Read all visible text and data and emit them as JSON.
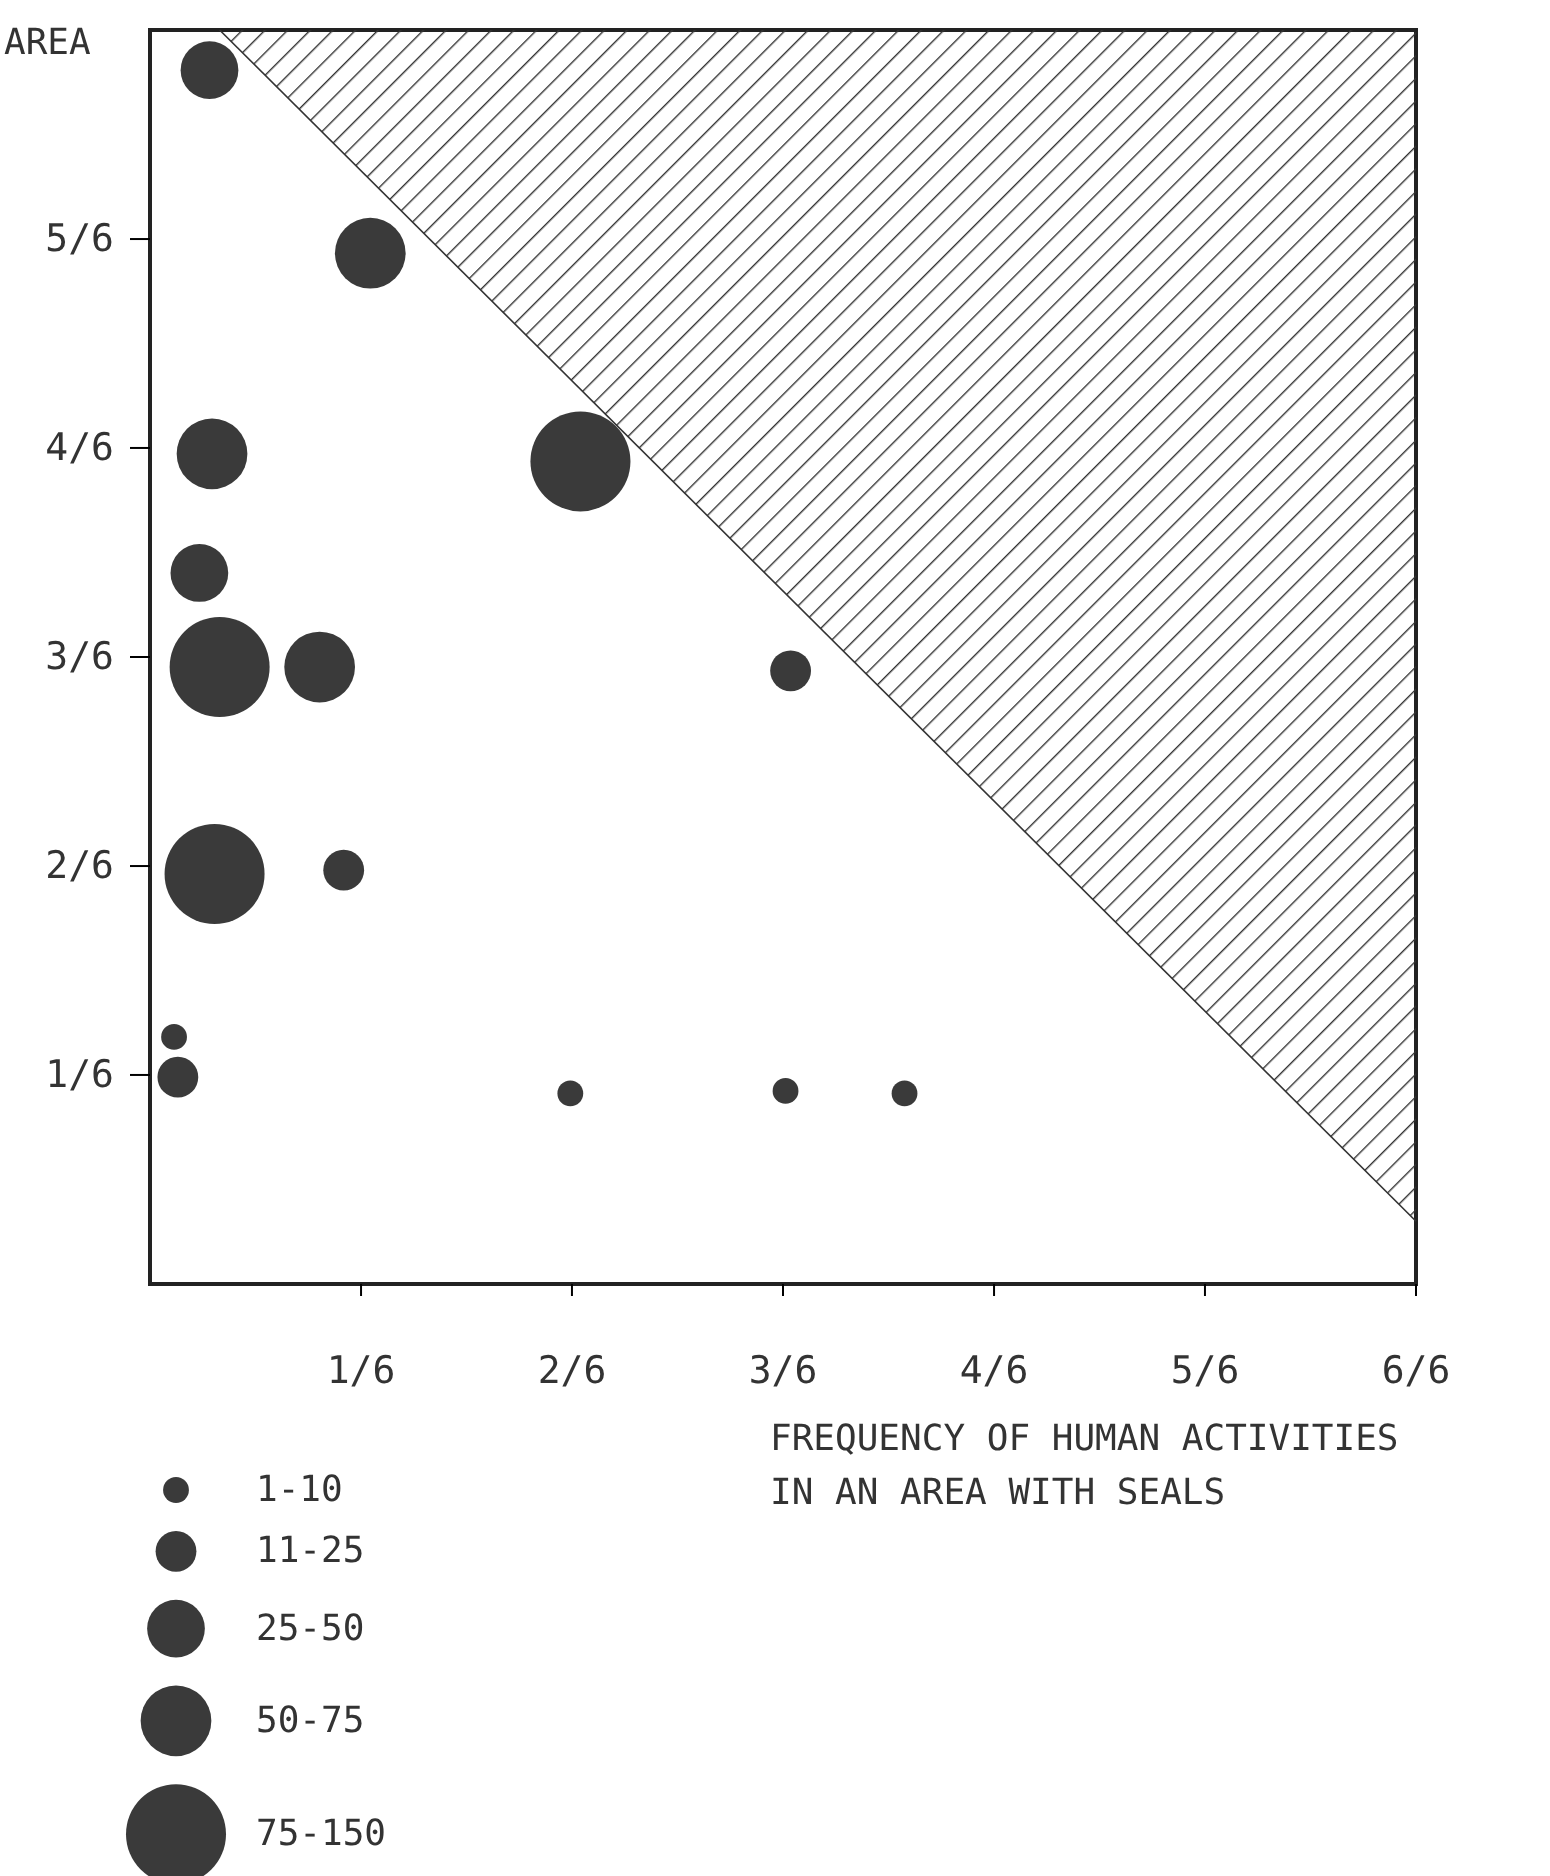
{
  "chart_data": {
    "type": "bubble",
    "ylabel": "AREA",
    "xlabel": "FREQUENCY OF HUMAN ACTIVITIES\nIN AN AREA WITH SEALS",
    "xlim": [
      0,
      1
    ],
    "ylim": [
      0,
      1
    ],
    "xticks": [
      {
        "value": 0.1667,
        "label": "1/6"
      },
      {
        "value": 0.3333,
        "label": "2/6"
      },
      {
        "value": 0.5,
        "label": "3/6"
      },
      {
        "value": 0.6667,
        "label": "4/6"
      },
      {
        "value": 0.8333,
        "label": "5/6"
      },
      {
        "value": 1,
        "label": "6/6"
      }
    ],
    "yticks": [
      {
        "value": 0.1667,
        "label": "1/6"
      },
      {
        "value": 0.3333,
        "label": "2/6"
      },
      {
        "value": 0.5,
        "label": "3/6"
      },
      {
        "value": 0.6667,
        "label": "4/6"
      },
      {
        "value": 0.8333,
        "label": "5/6"
      }
    ],
    "series": [
      {
        "color": "#3a3a3a",
        "x": [
          0.047,
          0.174,
          0.049,
          0.039,
          0.055,
          0.134,
          0.34,
          0.506,
          0.051,
          0.153,
          0.019,
          0.022,
          0.332,
          0.502,
          0.596
        ],
        "values": [
          0.968,
          0.822,
          0.662,
          0.567,
          0.492,
          0.492,
          0.656,
          0.489,
          0.327,
          0.33,
          0.197,
          0.165,
          0.152,
          0.154,
          0.152
        ],
        "sizes": [
          50,
          75,
          75,
          50,
          150,
          75,
          150,
          25,
          150,
          25,
          10,
          25,
          10,
          10,
          10
        ]
      },
      {
        "type": "line",
        "color": "#333333",
        "x": [
          0.055,
          1
        ],
        "values": [
          1,
          0.05
        ],
        "lower": [
          1,
          0.05
        ],
        "upper": [
          1,
          1
        ]
      }
    ],
    "size_legend": [
      {
        "value": 10,
        "label": "1-10"
      },
      {
        "value": 25,
        "label": "11-25"
      },
      {
        "value": 50,
        "label": "25-50"
      },
      {
        "value": 75,
        "label": "50-75"
      },
      {
        "value": 150,
        "label": "75-150"
      }
    ],
    "grid": false
  }
}
